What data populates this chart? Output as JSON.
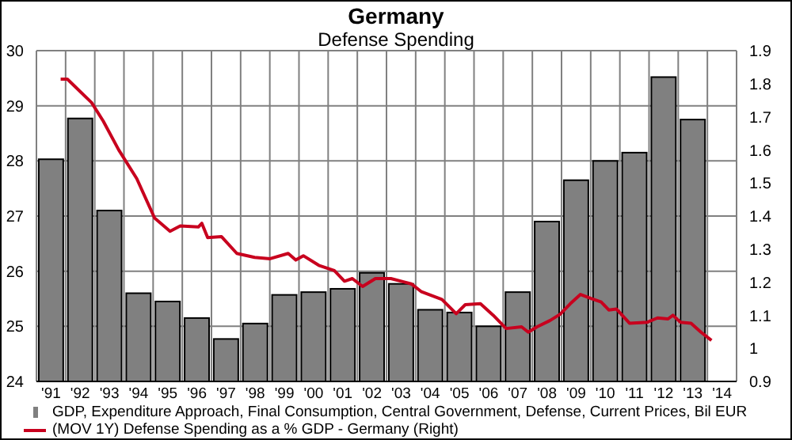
{
  "chart_data": {
    "type": "bar",
    "title": "Germany",
    "subtitle": "Defense Spending",
    "x": [
      1991,
      1992,
      1993,
      1994,
      1995,
      1996,
      1997,
      1998,
      1999,
      2000,
      2001,
      2002,
      2003,
      2004,
      2005,
      2006,
      2007,
      2008,
      2009,
      2010,
      2011,
      2012,
      2013
    ],
    "xlim": [
      1990.5,
      2014.5
    ],
    "xticks": [
      {
        "value": 1991,
        "label": "'91"
      },
      {
        "value": 1992,
        "label": "'92"
      },
      {
        "value": 1993,
        "label": "'93"
      },
      {
        "value": 1994,
        "label": "'94"
      },
      {
        "value": 1995,
        "label": "'95"
      },
      {
        "value": 1996,
        "label": "'96"
      },
      {
        "value": 1997,
        "label": "'97"
      },
      {
        "value": 1998,
        "label": "'98"
      },
      {
        "value": 1999,
        "label": "'99"
      },
      {
        "value": 2000,
        "label": "'00"
      },
      {
        "value": 2001,
        "label": "'01"
      },
      {
        "value": 2002,
        "label": "'02"
      },
      {
        "value": 2003,
        "label": "'03"
      },
      {
        "value": 2004,
        "label": "'04"
      },
      {
        "value": 2005,
        "label": "'05"
      },
      {
        "value": 2006,
        "label": "'06"
      },
      {
        "value": 2007,
        "label": "'07"
      },
      {
        "value": 2008,
        "label": "'08"
      },
      {
        "value": 2009,
        "label": "'09"
      },
      {
        "value": 2010,
        "label": "'10"
      },
      {
        "value": 2011,
        "label": "'11"
      },
      {
        "value": 2012,
        "label": "'12"
      },
      {
        "value": 2013,
        "label": "'13"
      },
      {
        "value": 2014,
        "label": "'14"
      }
    ],
    "series": [
      {
        "name": "GDP, Expenditure Approach, Final Consumption, Central Government, Defense, Current Prices, Bil EUR",
        "color": "#808080",
        "values": [
          28.03,
          28.77,
          27.1,
          25.6,
          25.45,
          25.15,
          24.77,
          25.05,
          25.57,
          25.62,
          25.68,
          25.97,
          25.77,
          25.3,
          25.25,
          25.0,
          25.62,
          26.9,
          27.65,
          28.0,
          28.15,
          29.52,
          28.75
        ]
      },
      {
        "name": "(MOV 1Y) Defense Spending as a % GDP - Germany  (Right)",
        "type": "line",
        "axis": "y2",
        "color": "#c8001e",
        "x": [
          1991.33,
          1991.56,
          1992.39,
          1992.79,
          1993.32,
          1993.94,
          1994.55,
          1995.08,
          1995.43,
          1996.05,
          1996.17,
          1996.37,
          1996.84,
          1997.37,
          1997.98,
          1998.51,
          1999.13,
          1999.39,
          1999.65,
          2000.18,
          2000.71,
          2001.06,
          2001.33,
          2001.68,
          2002.12,
          2002.65,
          2003.35,
          2003.7,
          2004.4,
          2004.89,
          2005.2,
          2005.72,
          2006.16,
          2006.6,
          2007.13,
          2007.36,
          2007.66,
          2008.1,
          2008.45,
          2008.8,
          2009.15,
          2009.51,
          2009.86,
          2010.12,
          2010.38,
          2010.83,
          2011.44,
          2011.79,
          2012.15,
          2012.32,
          2012.58,
          2012.94,
          2013.28,
          2013.64
        ],
        "values": [
          1.814,
          1.814,
          1.743,
          1.687,
          1.6,
          1.513,
          1.394,
          1.354,
          1.37,
          1.367,
          1.378,
          1.335,
          1.338,
          1.287,
          1.275,
          1.271,
          1.287,
          1.267,
          1.28,
          1.251,
          1.235,
          1.203,
          1.211,
          1.187,
          1.211,
          1.211,
          1.195,
          1.171,
          1.148,
          1.105,
          1.132,
          1.135,
          1.1,
          1.06,
          1.065,
          1.049,
          1.065,
          1.084,
          1.103,
          1.135,
          1.163,
          1.151,
          1.14,
          1.116,
          1.119,
          1.076,
          1.079,
          1.092,
          1.089,
          1.1,
          1.079,
          1.076,
          1.049,
          1.024
        ]
      }
    ],
    "ylim": [
      24,
      30
    ],
    "yticks": [
      24,
      25,
      26,
      27,
      28,
      29,
      30
    ],
    "y2lim": [
      0.9,
      1.9
    ],
    "y2ticks": [
      0.9,
      1,
      1.1,
      1.2,
      1.3,
      1.4,
      1.5,
      1.6,
      1.7,
      1.8,
      1.9
    ],
    "grid": true,
    "legend": "bottom"
  }
}
